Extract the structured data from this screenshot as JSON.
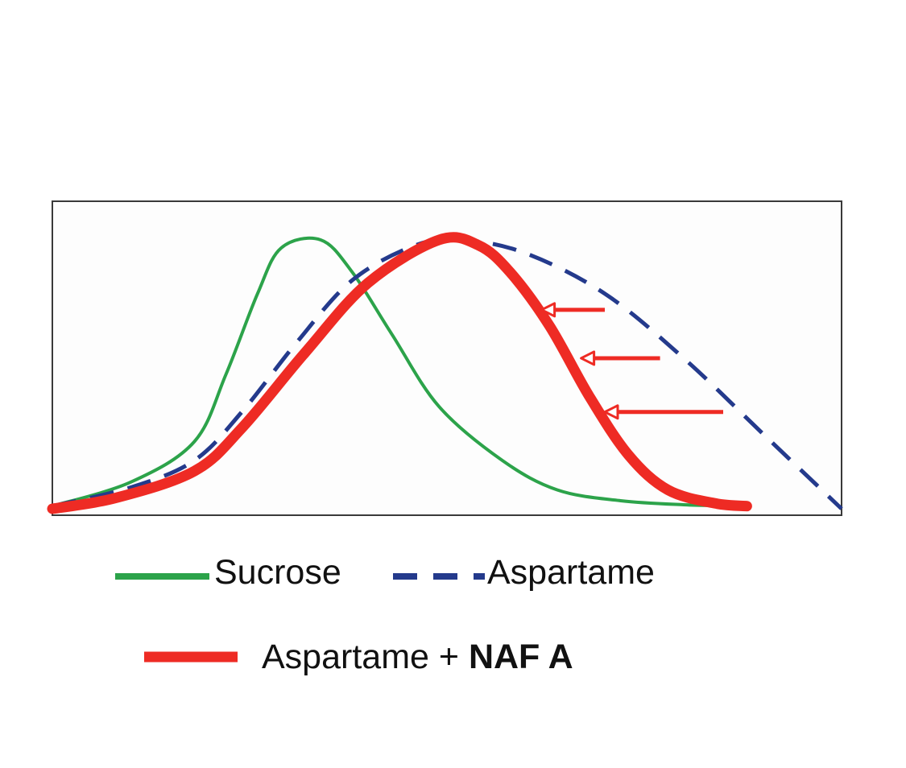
{
  "chart_data": {
    "type": "line",
    "title": "",
    "xlabel": "",
    "ylabel": "",
    "xlim": [
      0,
      100
    ],
    "ylim": [
      0,
      100
    ],
    "grid": false,
    "legend_position": "bottom",
    "series": [
      {
        "name": "Sucrose",
        "color": "#2ca34a",
        "style": "solid",
        "points": [
          [
            0,
            1
          ],
          [
            10,
            10
          ],
          [
            18,
            25
          ],
          [
            22,
            50
          ],
          [
            26,
            80
          ],
          [
            29,
            97
          ],
          [
            34,
            100
          ],
          [
            38,
            88
          ],
          [
            43,
            65
          ],
          [
            49,
            38
          ],
          [
            57,
            18
          ],
          [
            64,
            7
          ],
          [
            72,
            3
          ],
          [
            80,
            1.5
          ],
          [
            87,
            1
          ]
        ]
      },
      {
        "name": "Aspartame",
        "color": "#243a8c",
        "style": "dashed",
        "points": [
          [
            0,
            1
          ],
          [
            10,
            8
          ],
          [
            18,
            18
          ],
          [
            24,
            36
          ],
          [
            31,
            62
          ],
          [
            38,
            85
          ],
          [
            46,
            98
          ],
          [
            52,
            100
          ],
          [
            60,
            95
          ],
          [
            70,
            80
          ],
          [
            80,
            56
          ],
          [
            90,
            28
          ],
          [
            100,
            0
          ]
        ]
      },
      {
        "name": "Aspartame + NAF A",
        "color": "#ee2b24",
        "style": "thick",
        "points": [
          [
            0,
            0
          ],
          [
            8,
            4
          ],
          [
            18,
            14
          ],
          [
            24,
            30
          ],
          [
            32,
            58
          ],
          [
            40,
            84
          ],
          [
            49,
            100
          ],
          [
            54,
            98
          ],
          [
            58,
            88
          ],
          [
            63,
            68
          ],
          [
            68,
            42
          ],
          [
            73,
            20
          ],
          [
            78,
            7
          ],
          [
            84,
            2
          ],
          [
            88,
            1
          ]
        ]
      }
    ],
    "annotations": [
      {
        "type": "arrow",
        "direction": "left",
        "color": "#ee2b24",
        "from": [
          70,
          74
        ],
        "to": [
          62,
          74
        ]
      },
      {
        "type": "arrow",
        "direction": "left",
        "color": "#ee2b24",
        "from": [
          77,
          56
        ],
        "to": [
          67,
          56
        ]
      },
      {
        "type": "arrow",
        "direction": "left",
        "color": "#ee2b24",
        "from": [
          85,
          36
        ],
        "to": [
          70,
          36
        ]
      }
    ],
    "legend": [
      {
        "label": "Sucrose",
        "series_index": 0
      },
      {
        "label": "Aspartame",
        "series_index": 1
      },
      {
        "label_main": "Aspartame + ",
        "label_bold": "NAF A",
        "series_index": 2
      }
    ]
  }
}
